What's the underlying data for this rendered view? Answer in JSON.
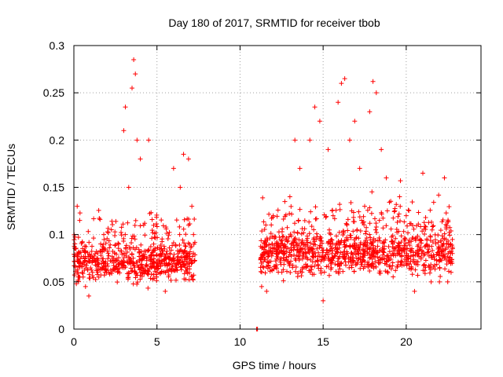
{
  "chart_data": {
    "type": "scatter",
    "title": "Day 180 of 2017, SRMTID for receiver tbob",
    "xlabel": "GPS time / hours",
    "ylabel": "SRMTID / TECUs",
    "xlim": [
      0,
      24.5
    ],
    "ylim": [
      0,
      0.3
    ],
    "x_ticks": [
      0,
      5,
      10,
      15,
      20
    ],
    "x_tick_labels": [
      "0",
      "5",
      "10",
      "15",
      "20"
    ],
    "y_ticks": [
      0,
      0.05,
      0.1,
      0.15,
      0.2,
      0.25,
      0.3
    ],
    "y_tick_labels": [
      "0",
      "0.05",
      "0.1",
      "0.15",
      "0.2",
      "0.25",
      "0.3"
    ],
    "grid": true,
    "marker": "plus",
    "colors": {
      "points": "#ff0000",
      "grid": "#a0a0a0",
      "axis": "#000000"
    },
    "series": [
      {
        "name": "tbob",
        "segments": [
          {
            "x_start": 0.0,
            "x_end": 7.3,
            "baseline": 0.07,
            "spread": 0.018
          },
          {
            "x_start": 11.2,
            "x_end": 22.8,
            "baseline": 0.08,
            "spread": 0.02
          }
        ],
        "points": [
          [
            0.1,
            0.085
          ],
          [
            0.2,
            0.13
          ],
          [
            0.35,
            0.115
          ],
          [
            0.5,
            0.06
          ],
          [
            0.7,
            0.045
          ],
          [
            0.9,
            0.035
          ],
          [
            1.2,
            0.075
          ],
          [
            1.5,
            0.055
          ],
          [
            1.8,
            0.1
          ],
          [
            2.1,
            0.06
          ],
          [
            2.4,
            0.07
          ],
          [
            2.7,
            0.09
          ],
          [
            3.0,
            0.21
          ],
          [
            3.1,
            0.235
          ],
          [
            3.3,
            0.15
          ],
          [
            3.5,
            0.255
          ],
          [
            3.6,
            0.285
          ],
          [
            3.7,
            0.27
          ],
          [
            3.8,
            0.2
          ],
          [
            4.0,
            0.18
          ],
          [
            4.2,
            0.11
          ],
          [
            4.5,
            0.2
          ],
          [
            4.8,
            0.09
          ],
          [
            5.0,
            0.06
          ],
          [
            5.5,
            0.04
          ],
          [
            6.0,
            0.17
          ],
          [
            6.4,
            0.15
          ],
          [
            6.6,
            0.185
          ],
          [
            6.9,
            0.18
          ],
          [
            7.1,
            0.13
          ],
          [
            7.2,
            0.1
          ],
          [
            11.0,
            0.0
          ],
          [
            11.05,
            0.0
          ],
          [
            11.3,
            0.045
          ],
          [
            11.6,
            0.04
          ],
          [
            11.8,
            0.065
          ],
          [
            12.0,
            0.12
          ],
          [
            12.3,
            0.09
          ],
          [
            12.7,
            0.08
          ],
          [
            13.0,
            0.14
          ],
          [
            13.3,
            0.2
          ],
          [
            13.6,
            0.17
          ],
          [
            14.0,
            0.08
          ],
          [
            14.2,
            0.2
          ],
          [
            14.5,
            0.235
          ],
          [
            14.8,
            0.22
          ],
          [
            15.0,
            0.03
          ],
          [
            15.3,
            0.19
          ],
          [
            15.6,
            0.12
          ],
          [
            15.9,
            0.24
          ],
          [
            16.1,
            0.26
          ],
          [
            16.3,
            0.265
          ],
          [
            16.6,
            0.2
          ],
          [
            16.9,
            0.22
          ],
          [
            17.2,
            0.17
          ],
          [
            17.5,
            0.13
          ],
          [
            17.8,
            0.23
          ],
          [
            18.0,
            0.262
          ],
          [
            18.2,
            0.25
          ],
          [
            18.5,
            0.19
          ],
          [
            18.8,
            0.16
          ],
          [
            19.2,
            0.09
          ],
          [
            19.6,
            0.14
          ],
          [
            20.0,
            0.12
          ],
          [
            20.5,
            0.04
          ],
          [
            21.0,
            0.165
          ],
          [
            21.5,
            0.05
          ],
          [
            22.0,
            0.05
          ],
          [
            22.3,
            0.16
          ],
          [
            22.5,
            0.05
          ],
          [
            22.7,
            0.06
          ]
        ]
      }
    ]
  }
}
